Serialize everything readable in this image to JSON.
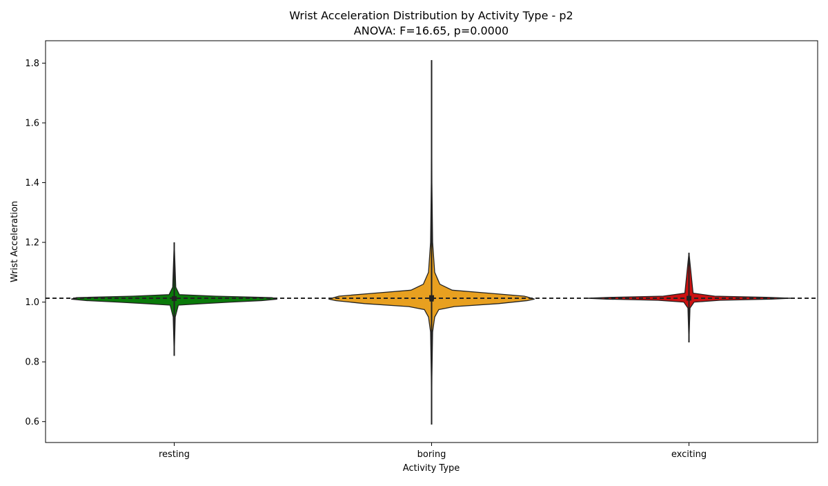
{
  "chart_data": {
    "type": "violin",
    "title": "Wrist Acceleration Distribution by Activity Type - p2",
    "subtitle": "ANOVA: F=16.65, p=0.0000",
    "xlabel": "Activity Type",
    "ylabel": "Wrist Acceleration",
    "ylim": [
      0.53,
      1.875
    ],
    "yticks": [
      0.6,
      0.8,
      1.0,
      1.2,
      1.4,
      1.6,
      1.8
    ],
    "ytick_labels": [
      "0.6",
      "0.8",
      "1.0",
      "1.2",
      "1.4",
      "1.6",
      "1.8"
    ],
    "categories": [
      "resting",
      "boring",
      "exciting"
    ],
    "reference_line": {
      "value": 1.013,
      "style": "dashed",
      "color": "#222222"
    },
    "grid": false,
    "series": [
      {
        "category": "resting",
        "color": "#0a7a0a",
        "min": 0.82,
        "max": 1.2,
        "q1": 1.005,
        "median": 1.013,
        "q3": 1.018,
        "mean": 1.012,
        "density_profile": [
          [
            0.82,
            0.0
          ],
          [
            0.95,
            0.01
          ],
          [
            0.99,
            0.04
          ],
          [
            0.995,
            0.28
          ],
          [
            1.0,
            0.55
          ],
          [
            1.005,
            0.85
          ],
          [
            1.01,
            1.0
          ],
          [
            1.015,
            0.95
          ],
          [
            1.02,
            0.4
          ],
          [
            1.025,
            0.05
          ],
          [
            1.05,
            0.015
          ],
          [
            1.2,
            0.0
          ]
        ]
      },
      {
        "category": "boring",
        "color": "#e8a020",
        "min": 0.59,
        "max": 1.81,
        "q1": 1.002,
        "median": 1.013,
        "q3": 1.022,
        "mean": 1.015,
        "density_profile": [
          [
            0.59,
            0.0
          ],
          [
            0.75,
            0.003
          ],
          [
            0.9,
            0.01
          ],
          [
            0.95,
            0.03
          ],
          [
            0.975,
            0.07
          ],
          [
            0.985,
            0.22
          ],
          [
            0.995,
            0.65
          ],
          [
            1.005,
            0.93
          ],
          [
            1.01,
            1.0
          ],
          [
            1.02,
            0.9
          ],
          [
            1.03,
            0.55
          ],
          [
            1.04,
            0.2
          ],
          [
            1.06,
            0.08
          ],
          [
            1.1,
            0.03
          ],
          [
            1.2,
            0.01
          ],
          [
            1.4,
            0.003
          ],
          [
            1.81,
            0.0
          ]
        ]
      },
      {
        "category": "exciting",
        "color": "#cc1111",
        "min": 0.865,
        "max": 1.165,
        "q1": 1.008,
        "median": 1.013,
        "q3": 1.017,
        "mean": 1.013,
        "density_profile": [
          [
            0.865,
            0.0
          ],
          [
            0.98,
            0.01
          ],
          [
            1.0,
            0.05
          ],
          [
            1.006,
            0.3
          ],
          [
            1.01,
            0.8
          ],
          [
            1.013,
            1.0
          ],
          [
            1.016,
            0.75
          ],
          [
            1.02,
            0.25
          ],
          [
            1.03,
            0.04
          ],
          [
            1.165,
            0.0
          ]
        ]
      }
    ]
  }
}
